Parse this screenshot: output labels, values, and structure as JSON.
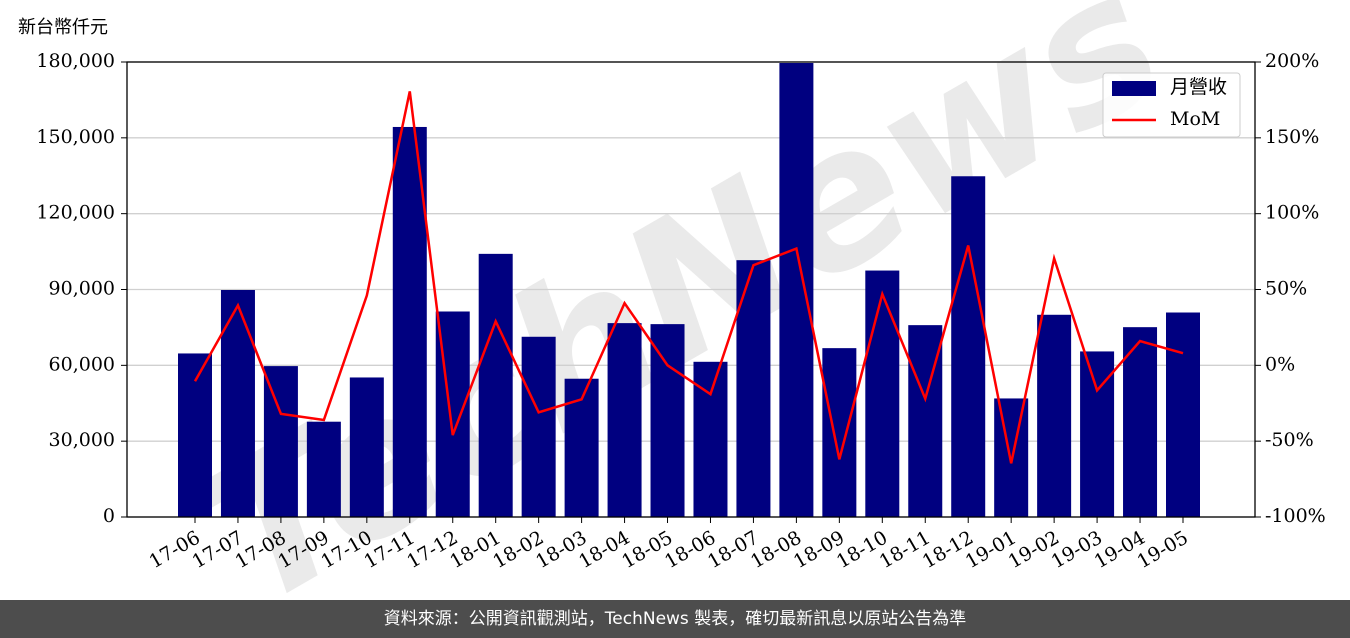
{
  "chart_data": {
    "type": "bar-line",
    "y_label": "新台幣仟元",
    "watermark": "TechNews",
    "categories": [
      "17-06",
      "17-07",
      "17-08",
      "17-09",
      "17-10",
      "17-11",
      "17-12",
      "18-01",
      "18-02",
      "18-03",
      "18-04",
      "18-05",
      "18-06",
      "18-07",
      "18-08",
      "18-09",
      "18-10",
      "18-11",
      "18-12",
      "19-01",
      "19-02",
      "19-03",
      "19-04",
      "19-05"
    ],
    "series": [
      {
        "name": "月營收",
        "color": "#000080",
        "type": "bar",
        "values": [
          64700,
          89800,
          59700,
          37700,
          55200,
          154300,
          81300,
          104100,
          71300,
          54700,
          76700,
          76300,
          61400,
          101600,
          179600,
          66800,
          97500,
          75900,
          134800,
          46900,
          80000,
          65500,
          75100,
          80900
        ]
      },
      {
        "name": "MoM",
        "color": "#ff0000",
        "type": "line",
        "axis": "y2",
        "values": [
          -10.5,
          39.5,
          -32,
          -36,
          46,
          180.6,
          -46,
          29,
          -31,
          -22.4,
          41,
          0,
          -19,
          66,
          77,
          -62,
          47,
          -22,
          79,
          -64.6,
          70.5,
          -16.5,
          16,
          8
        ]
      }
    ],
    "ylim": [
      0,
      180000
    ],
    "yticks": [
      0,
      {
        "value": 30000,
        "label": "30,000"
      },
      {
        "value": 60000,
        "label": "60,000"
      },
      {
        "value": 90000,
        "label": "90,000"
      },
      {
        "value": 120000,
        "label": "120,000"
      },
      {
        "value": 150000,
        "label": "150,000"
      },
      {
        "value": 180000,
        "label": "180,000"
      }
    ],
    "y2lim": [
      -100,
      200
    ],
    "y2ticks": [
      {
        "value": -100,
        "label": "-100%"
      },
      {
        "value": -50,
        "label": "-50%"
      },
      {
        "value": 0,
        "label": "0%"
      },
      {
        "value": 50,
        "label": "50%"
      },
      {
        "value": 100,
        "label": "100%"
      },
      {
        "value": 150,
        "label": "150%"
      },
      {
        "value": 200,
        "label": "200%"
      }
    ],
    "grid": true,
    "legend": "upper right",
    "footer": "資料來源：公開資訊觀測站，TechNews 製表，確切最新訊息以原站公告為準"
  }
}
